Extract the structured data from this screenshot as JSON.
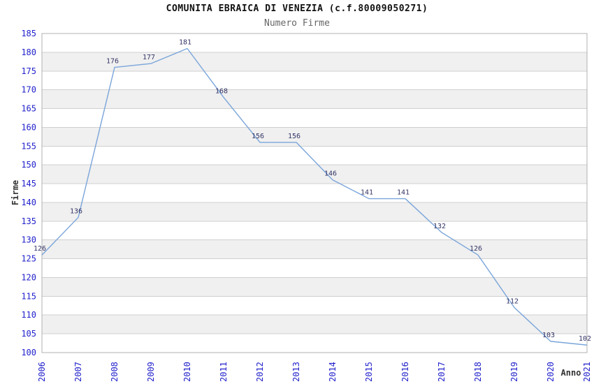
{
  "chart_data": {
    "type": "line",
    "title": "COMUNITA EBRAICA DI VENEZIA (c.f.80009050271)",
    "subtitle": "Numero Firme",
    "xlabel": "Anno",
    "ylabel": "Firme",
    "categories": [
      "2006",
      "2007",
      "2008",
      "2009",
      "2010",
      "2011",
      "2012",
      "2013",
      "2014",
      "2015",
      "2016",
      "2017",
      "2018",
      "2019",
      "2020",
      "2021"
    ],
    "series": [
      {
        "name": "Numero Firme",
        "values": [
          126,
          136,
          176,
          177,
          181,
          168,
          156,
          156,
          146,
          141,
          141,
          132,
          126,
          112,
          103,
          102
        ]
      }
    ],
    "ylim": [
      100,
      185
    ],
    "ytick_step": 5,
    "grid": true,
    "legend": "none",
    "data_labels_shown": true,
    "alternating_bands": true,
    "colors": {
      "line": "#7aa5da",
      "tick_label": "#2222cc",
      "data_label": "#333366",
      "band": "#f0f0f0",
      "gridline": "#cfcfcf",
      "plot_border": "#b0b0b0",
      "title": "#111111",
      "subtitle": "#666666",
      "axis_title": "#333333",
      "background": "#ffffff"
    }
  }
}
